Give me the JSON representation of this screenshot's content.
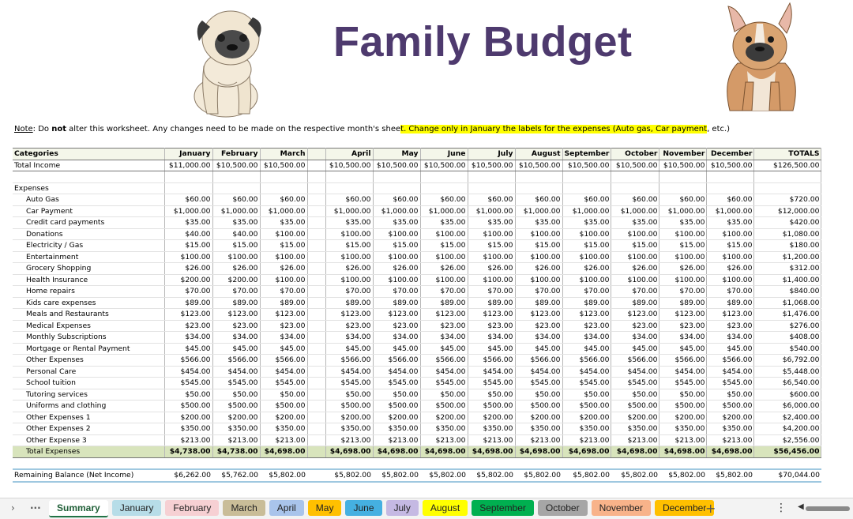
{
  "title": "Family Budget",
  "note": {
    "label": "Note",
    "part1": ": Do ",
    "bold": "not",
    "part2": " alter this worksheet. Any changes need to be made on the respective month's shee",
    "highlight": "t. Change only in January the labels for the expenses (Auto gas, Car payment",
    "tail": ", etc.)"
  },
  "table": {
    "header": {
      "category": "Categories",
      "months": [
        "January",
        "February",
        "March",
        "April",
        "May",
        "June",
        "July",
        "August",
        "September",
        "October",
        "November",
        "December"
      ],
      "totals": "TOTALS"
    },
    "income": {
      "label": "Total Income",
      "values": [
        "$11,000.00",
        "$10,500.00",
        "$10,500.00",
        "$10,500.00",
        "$10,500.00",
        "$10,500.00",
        "$10,500.00",
        "$10,500.00",
        "$10,500.00",
        "$10,500.00",
        "$10,500.00",
        "$10,500.00"
      ],
      "total": "$126,500.00"
    },
    "expenses_label": "Expenses",
    "expenses": [
      {
        "label": "Auto Gas",
        "values": [
          "$60.00",
          "$60.00",
          "$60.00",
          "$60.00",
          "$60.00",
          "$60.00",
          "$60.00",
          "$60.00",
          "$60.00",
          "$60.00",
          "$60.00",
          "$60.00"
        ],
        "total": "$720.00"
      },
      {
        "label": "Car Payment",
        "values": [
          "$1,000.00",
          "$1,000.00",
          "$1,000.00",
          "$1,000.00",
          "$1,000.00",
          "$1,000.00",
          "$1,000.00",
          "$1,000.00",
          "$1,000.00",
          "$1,000.00",
          "$1,000.00",
          "$1,000.00"
        ],
        "total": "$12,000.00"
      },
      {
        "label": "Credit card payments",
        "values": [
          "$35.00",
          "$35.00",
          "$35.00",
          "$35.00",
          "$35.00",
          "$35.00",
          "$35.00",
          "$35.00",
          "$35.00",
          "$35.00",
          "$35.00",
          "$35.00"
        ],
        "total": "$420.00"
      },
      {
        "label": "Donations",
        "values": [
          "$40.00",
          "$40.00",
          "$100.00",
          "$100.00",
          "$100.00",
          "$100.00",
          "$100.00",
          "$100.00",
          "$100.00",
          "$100.00",
          "$100.00",
          "$100.00"
        ],
        "total": "$1,080.00"
      },
      {
        "label": "Electricity / Gas",
        "values": [
          "$15.00",
          "$15.00",
          "$15.00",
          "$15.00",
          "$15.00",
          "$15.00",
          "$15.00",
          "$15.00",
          "$15.00",
          "$15.00",
          "$15.00",
          "$15.00"
        ],
        "total": "$180.00"
      },
      {
        "label": "Entertainment",
        "values": [
          "$100.00",
          "$100.00",
          "$100.00",
          "$100.00",
          "$100.00",
          "$100.00",
          "$100.00",
          "$100.00",
          "$100.00",
          "$100.00",
          "$100.00",
          "$100.00"
        ],
        "total": "$1,200.00"
      },
      {
        "label": "Grocery Shopping",
        "values": [
          "$26.00",
          "$26.00",
          "$26.00",
          "$26.00",
          "$26.00",
          "$26.00",
          "$26.00",
          "$26.00",
          "$26.00",
          "$26.00",
          "$26.00",
          "$26.00"
        ],
        "total": "$312.00"
      },
      {
        "label": "Health Insurance",
        "values": [
          "$200.00",
          "$200.00",
          "$100.00",
          "$100.00",
          "$100.00",
          "$100.00",
          "$100.00",
          "$100.00",
          "$100.00",
          "$100.00",
          "$100.00",
          "$100.00"
        ],
        "total": "$1,400.00"
      },
      {
        "label": "Home repairs",
        "values": [
          "$70.00",
          "$70.00",
          "$70.00",
          "$70.00",
          "$70.00",
          "$70.00",
          "$70.00",
          "$70.00",
          "$70.00",
          "$70.00",
          "$70.00",
          "$70.00"
        ],
        "total": "$840.00"
      },
      {
        "label": "Kids care expenses",
        "values": [
          "$89.00",
          "$89.00",
          "$89.00",
          "$89.00",
          "$89.00",
          "$89.00",
          "$89.00",
          "$89.00",
          "$89.00",
          "$89.00",
          "$89.00",
          "$89.00"
        ],
        "total": "$1,068.00"
      },
      {
        "label": "Meals and Restaurants",
        "values": [
          "$123.00",
          "$123.00",
          "$123.00",
          "$123.00",
          "$123.00",
          "$123.00",
          "$123.00",
          "$123.00",
          "$123.00",
          "$123.00",
          "$123.00",
          "$123.00"
        ],
        "total": "$1,476.00"
      },
      {
        "label": "Medical Expenses",
        "values": [
          "$23.00",
          "$23.00",
          "$23.00",
          "$23.00",
          "$23.00",
          "$23.00",
          "$23.00",
          "$23.00",
          "$23.00",
          "$23.00",
          "$23.00",
          "$23.00"
        ],
        "total": "$276.00"
      },
      {
        "label": "Monthly Subscriptions",
        "values": [
          "$34.00",
          "$34.00",
          "$34.00",
          "$34.00",
          "$34.00",
          "$34.00",
          "$34.00",
          "$34.00",
          "$34.00",
          "$34.00",
          "$34.00",
          "$34.00"
        ],
        "total": "$408.00"
      },
      {
        "label": "Mortgage or Rental Payment",
        "values": [
          "$45.00",
          "$45.00",
          "$45.00",
          "$45.00",
          "$45.00",
          "$45.00",
          "$45.00",
          "$45.00",
          "$45.00",
          "$45.00",
          "$45.00",
          "$45.00"
        ],
        "total": "$540.00"
      },
      {
        "label": "Other Expenses",
        "values": [
          "$566.00",
          "$566.00",
          "$566.00",
          "$566.00",
          "$566.00",
          "$566.00",
          "$566.00",
          "$566.00",
          "$566.00",
          "$566.00",
          "$566.00",
          "$566.00"
        ],
        "total": "$6,792.00"
      },
      {
        "label": "Personal Care",
        "values": [
          "$454.00",
          "$454.00",
          "$454.00",
          "$454.00",
          "$454.00",
          "$454.00",
          "$454.00",
          "$454.00",
          "$454.00",
          "$454.00",
          "$454.00",
          "$454.00"
        ],
        "total": "$5,448.00"
      },
      {
        "label": "School tuition",
        "values": [
          "$545.00",
          "$545.00",
          "$545.00",
          "$545.00",
          "$545.00",
          "$545.00",
          "$545.00",
          "$545.00",
          "$545.00",
          "$545.00",
          "$545.00",
          "$545.00"
        ],
        "total": "$6,540.00"
      },
      {
        "label": "Tutoring services",
        "values": [
          "$50.00",
          "$50.00",
          "$50.00",
          "$50.00",
          "$50.00",
          "$50.00",
          "$50.00",
          "$50.00",
          "$50.00",
          "$50.00",
          "$50.00",
          "$50.00"
        ],
        "total": "$600.00"
      },
      {
        "label": "Uniforms and clothing",
        "values": [
          "$500.00",
          "$500.00",
          "$500.00",
          "$500.00",
          "$500.00",
          "$500.00",
          "$500.00",
          "$500.00",
          "$500.00",
          "$500.00",
          "$500.00",
          "$500.00"
        ],
        "total": "$6,000.00"
      },
      {
        "label": "Other Expenses 1",
        "values": [
          "$200.00",
          "$200.00",
          "$200.00",
          "$200.00",
          "$200.00",
          "$200.00",
          "$200.00",
          "$200.00",
          "$200.00",
          "$200.00",
          "$200.00",
          "$200.00"
        ],
        "total": "$2,400.00"
      },
      {
        "label": "Other Expenses  2",
        "values": [
          "$350.00",
          "$350.00",
          "$350.00",
          "$350.00",
          "$350.00",
          "$350.00",
          "$350.00",
          "$350.00",
          "$350.00",
          "$350.00",
          "$350.00",
          "$350.00"
        ],
        "total": "$4,200.00"
      },
      {
        "label": "Other Expense 3",
        "values": [
          "$213.00",
          "$213.00",
          "$213.00",
          "$213.00",
          "$213.00",
          "$213.00",
          "$213.00",
          "$213.00",
          "$213.00",
          "$213.00",
          "$213.00",
          "$213.00"
        ],
        "total": "$2,556.00"
      }
    ],
    "total_expenses": {
      "label": "Total Expenses",
      "values": [
        "$4,738.00",
        "$4,738.00",
        "$4,698.00",
        "$4,698.00",
        "$4,698.00",
        "$4,698.00",
        "$4,698.00",
        "$4,698.00",
        "$4,698.00",
        "$4,698.00",
        "$4,698.00",
        "$4,698.00"
      ],
      "total": "$56,456.00"
    },
    "balance": {
      "label": "Remaining Balance (Net Income)",
      "values": [
        "$6,262.00",
        "$5,762.00",
        "$5,802.00",
        "$5,802.00",
        "$5,802.00",
        "$5,802.00",
        "$5,802.00",
        "$5,802.00",
        "$5,802.00",
        "$5,802.00",
        "$5,802.00",
        "$5,802.00"
      ],
      "total": "$70,044.00"
    }
  },
  "sheet_tabs": [
    {
      "label": "Summary",
      "color": "#ffffff",
      "active": true
    },
    {
      "label": "January",
      "color": "#b7dde8"
    },
    {
      "label": "February",
      "color": "#f6d0d3"
    },
    {
      "label": "March",
      "color": "#c9bd98"
    },
    {
      "label": "April",
      "color": "#a9c4eb"
    },
    {
      "label": "May",
      "color": "#ffc000"
    },
    {
      "label": "June",
      "color": "#45b0e1"
    },
    {
      "label": "July",
      "color": "#c5b9e3"
    },
    {
      "label": "August",
      "color": "#ffff00"
    },
    {
      "label": "September",
      "color": "#00b050"
    },
    {
      "label": "October",
      "color": "#a6a6a6"
    },
    {
      "label": "November",
      "color": "#f8b38a"
    },
    {
      "label": "December",
      "color": "#ffc000"
    }
  ],
  "icons": {
    "scroll_right": "chevron-right-icon",
    "more_sheets": "ellipsis-icon",
    "add_sheet": "plus-icon",
    "options": "vertical-dots-icon"
  }
}
